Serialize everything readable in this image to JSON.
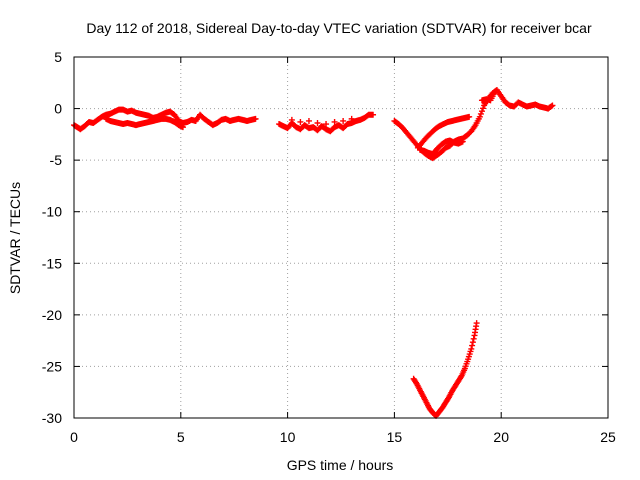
{
  "chart_data": {
    "type": "scatter",
    "title": "Day 112 of 2018, Sidereal Day-to-day VTEC variation (SDTVAR) for receiver bcar",
    "xlabel": "GPS time / hours",
    "ylabel": "SDTVAR / TECUs",
    "xlim": [
      0,
      25
    ],
    "ylim": [
      -30,
      5
    ],
    "xticks": [
      "0",
      "5",
      "10",
      "15",
      "20",
      "25"
    ],
    "yticks": [
      "5",
      "0",
      "-5",
      "-10",
      "-15",
      "-20",
      "-25",
      "-30"
    ],
    "grid": true,
    "marker_color": "#ff0000",
    "series": [
      {
        "points": [
          [
            0.0,
            -1.6
          ],
          [
            0.15,
            -1.8
          ],
          [
            0.3,
            -2.0
          ],
          [
            0.5,
            -1.7
          ],
          [
            0.7,
            -1.3
          ],
          [
            0.9,
            -1.4
          ],
          [
            1.1,
            -1.1
          ],
          [
            1.3,
            -0.8
          ],
          [
            1.5,
            -0.6
          ],
          [
            1.7,
            -0.5
          ],
          [
            1.9,
            -0.3
          ],
          [
            2.1,
            -0.1
          ],
          [
            2.3,
            -0.1
          ],
          [
            2.5,
            -0.3
          ],
          [
            2.7,
            -0.2
          ],
          [
            2.9,
            -0.4
          ],
          [
            3.1,
            -0.5
          ],
          [
            3.3,
            -0.6
          ],
          [
            3.5,
            -0.7
          ],
          [
            3.7,
            -0.9
          ],
          [
            3.9,
            -0.8
          ],
          [
            4.1,
            -0.6
          ],
          [
            4.3,
            -0.4
          ],
          [
            4.5,
            -0.3
          ],
          [
            4.7,
            -0.6
          ],
          [
            4.9,
            -1.2
          ],
          [
            5.1,
            -1.4
          ],
          [
            5.3,
            -1.3
          ],
          [
            5.5,
            -1.1
          ],
          [
            5.7,
            -1.2
          ],
          [
            5.9,
            -0.6
          ],
          [
            6.1,
            -1.0
          ],
          [
            6.3,
            -1.3
          ],
          [
            6.5,
            -1.6
          ],
          [
            6.7,
            -1.4
          ],
          [
            6.9,
            -1.1
          ],
          [
            7.1,
            -1.0
          ],
          [
            7.3,
            -1.2
          ],
          [
            7.5,
            -1.1
          ],
          [
            7.7,
            -1.0
          ],
          [
            7.9,
            -1.1
          ],
          [
            8.1,
            -1.2
          ],
          [
            8.3,
            -1.1
          ],
          [
            8.5,
            -1.0
          ]
        ]
      },
      {
        "points": [
          [
            1.5,
            -1.0
          ],
          [
            1.7,
            -1.2
          ],
          [
            1.9,
            -1.3
          ],
          [
            2.1,
            -1.4
          ],
          [
            2.3,
            -1.5
          ],
          [
            2.5,
            -1.4
          ],
          [
            2.7,
            -1.5
          ],
          [
            2.9,
            -1.6
          ],
          [
            3.1,
            -1.5
          ],
          [
            3.3,
            -1.4
          ],
          [
            3.5,
            -1.3
          ],
          [
            3.7,
            -1.2
          ],
          [
            3.9,
            -1.1
          ],
          [
            4.1,
            -1.0
          ],
          [
            4.3,
            -1.0
          ],
          [
            4.5,
            -1.1
          ],
          [
            4.7,
            -1.3
          ],
          [
            4.9,
            -1.6
          ],
          [
            5.1,
            -1.8
          ]
        ]
      },
      {
        "points": [
          [
            9.6,
            -1.5
          ],
          [
            9.8,
            -1.7
          ],
          [
            10.0,
            -1.9
          ],
          [
            10.2,
            -1.4
          ],
          [
            10.4,
            -1.8
          ],
          [
            10.6,
            -2.0
          ],
          [
            10.8,
            -1.6
          ],
          [
            11.0,
            -1.9
          ],
          [
            11.2,
            -1.8
          ],
          [
            11.4,
            -2.1
          ],
          [
            11.6,
            -1.7
          ],
          [
            11.8,
            -2.0
          ],
          [
            12.0,
            -2.2
          ],
          [
            12.2,
            -1.8
          ],
          [
            12.4,
            -1.6
          ],
          [
            12.6,
            -1.9
          ],
          [
            12.8,
            -1.5
          ],
          [
            13.0,
            -1.4
          ],
          [
            13.2,
            -1.2
          ],
          [
            13.4,
            -1.1
          ],
          [
            13.6,
            -0.9
          ],
          [
            13.8,
            -0.6
          ],
          [
            14.0,
            -0.6
          ],
          [
            10.2,
            -1.1
          ],
          [
            10.6,
            -1.3
          ],
          [
            11.0,
            -1.2
          ],
          [
            11.4,
            -1.4
          ],
          [
            11.8,
            -1.5
          ],
          [
            12.2,
            -1.3
          ],
          [
            12.6,
            -1.2
          ],
          [
            13.0,
            -1.0
          ]
        ]
      },
      {
        "points": [
          [
            15.0,
            -1.2
          ],
          [
            15.2,
            -1.5
          ],
          [
            15.4,
            -1.9
          ],
          [
            15.6,
            -2.4
          ],
          [
            15.8,
            -2.9
          ],
          [
            16.0,
            -3.4
          ],
          [
            16.2,
            -3.9
          ],
          [
            16.4,
            -4.3
          ],
          [
            16.6,
            -4.6
          ],
          [
            16.8,
            -4.8
          ],
          [
            17.0,
            -4.5
          ],
          [
            17.2,
            -4.2
          ],
          [
            17.4,
            -3.8
          ],
          [
            17.6,
            -3.6
          ],
          [
            17.8,
            -3.2
          ],
          [
            18.0,
            -3.0
          ],
          [
            18.2,
            -2.9
          ],
          [
            18.4,
            -2.6
          ],
          [
            18.6,
            -2.2
          ],
          [
            18.8,
            -1.6
          ],
          [
            19.0,
            -0.8
          ],
          [
            19.2,
            0.3
          ],
          [
            19.4,
            1.0
          ],
          [
            19.6,
            1.5
          ],
          [
            19.8,
            1.8
          ],
          [
            20.0,
            1.2
          ],
          [
            20.2,
            0.6
          ],
          [
            20.4,
            0.3
          ],
          [
            20.6,
            0.2
          ],
          [
            20.8,
            0.6
          ],
          [
            21.0,
            0.4
          ],
          [
            21.2,
            0.2
          ],
          [
            21.4,
            0.3
          ],
          [
            21.6,
            0.4
          ],
          [
            21.8,
            0.2
          ],
          [
            22.0,
            0.1
          ],
          [
            22.2,
            0.0
          ],
          [
            22.4,
            0.3
          ]
        ]
      },
      {
        "points": [
          [
            16.1,
            -3.8
          ],
          [
            16.3,
            -3.3
          ],
          [
            16.5,
            -2.8
          ],
          [
            16.7,
            -2.4
          ],
          [
            16.9,
            -2.0
          ],
          [
            17.1,
            -1.7
          ],
          [
            17.3,
            -1.5
          ],
          [
            17.5,
            -1.3
          ],
          [
            17.7,
            -1.2
          ],
          [
            17.9,
            -1.1
          ],
          [
            18.1,
            -1.0
          ],
          [
            18.3,
            -0.9
          ],
          [
            18.5,
            -0.8
          ],
          [
            19.1,
            0.8
          ],
          [
            19.3,
            0.9
          ],
          [
            19.5,
            0.8
          ],
          [
            19.7,
            1.6
          ]
        ]
      },
      {
        "points": [
          [
            16.2,
            -4.0
          ],
          [
            16.4,
            -4.1
          ],
          [
            16.6,
            -4.3
          ],
          [
            16.8,
            -4.4
          ],
          [
            17.0,
            -3.9
          ],
          [
            17.2,
            -3.5
          ],
          [
            17.4,
            -3.2
          ],
          [
            17.6,
            -3.1
          ],
          [
            17.8,
            -3.3
          ],
          [
            18.0,
            -3.4
          ],
          [
            18.2,
            -3.2
          ]
        ]
      },
      {
        "points": [
          [
            15.9,
            -26.2
          ],
          [
            16.05,
            -26.7
          ],
          [
            16.2,
            -27.3
          ],
          [
            16.35,
            -27.9
          ],
          [
            16.5,
            -28.5
          ],
          [
            16.65,
            -29.1
          ],
          [
            16.8,
            -29.5
          ],
          [
            16.95,
            -29.8
          ],
          [
            17.1,
            -29.4
          ],
          [
            17.25,
            -29.0
          ],
          [
            17.4,
            -28.5
          ],
          [
            17.55,
            -28.0
          ],
          [
            17.7,
            -27.4
          ],
          [
            17.85,
            -26.9
          ],
          [
            18.0,
            -26.4
          ],
          [
            18.15,
            -25.9
          ],
          [
            18.3,
            -25.2
          ],
          [
            18.45,
            -24.3
          ],
          [
            18.6,
            -23.3
          ],
          [
            18.75,
            -22.0
          ],
          [
            18.85,
            -20.8
          ]
        ]
      }
    ]
  }
}
